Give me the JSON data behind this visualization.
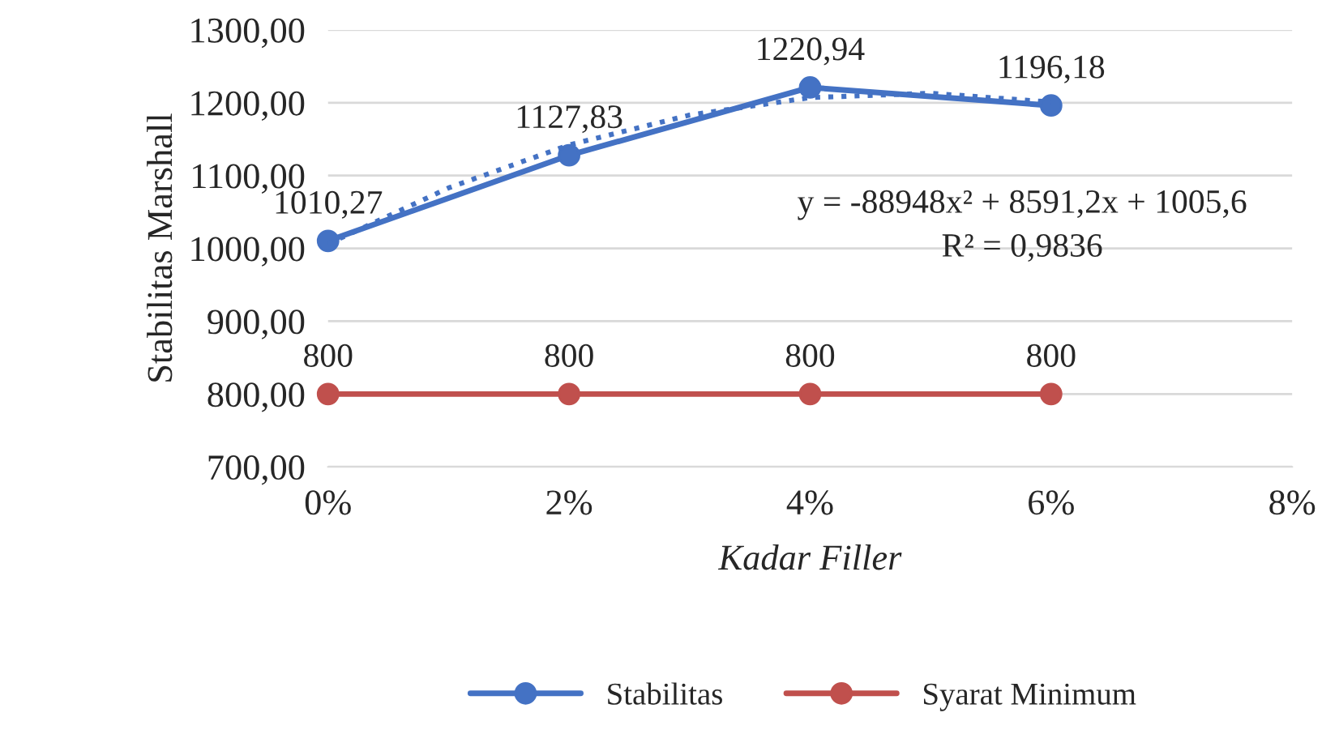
{
  "chart_data": {
    "type": "line",
    "xlabel": "Kadar Filler",
    "ylabel": "Stabilitas Marshall",
    "x": [
      0,
      0.02,
      0.04,
      0.06
    ],
    "series": [
      {
        "name": "Stabilitas",
        "color": "#4472c4",
        "values": [
          1010.27,
          1127.83,
          1220.94,
          1196.18
        ],
        "value_labels": [
          "1010,27",
          "1127,83",
          "1220,94",
          "1196,18"
        ],
        "marker": "circle"
      },
      {
        "name": "Syarat Minimum",
        "color": "#c0504d",
        "values": [
          800,
          800,
          800,
          800
        ],
        "value_labels": [
          "800",
          "800",
          "800",
          "800"
        ],
        "marker": "circle"
      },
      {
        "color": "#4472c4",
        "x": [
          0,
          0.01,
          0.02,
          0.03,
          0.04,
          0.05,
          0.06
        ],
        "values": [
          1006,
          1083,
          1142,
          1183,
          1207,
          1213,
          1201
        ],
        "marker": "none",
        "line_style": "dotted"
      }
    ],
    "xlim": [
      0,
      0.08
    ],
    "xticks": [
      {
        "value": 0,
        "label": "0%"
      },
      {
        "value": 0.02,
        "label": "2%"
      },
      {
        "value": 0.04,
        "label": "4%"
      },
      {
        "value": 0.06,
        "label": "6%"
      },
      {
        "value": 0.08,
        "label": "8%"
      }
    ],
    "ylim": [
      700,
      1300
    ],
    "yticks": [
      {
        "value": 700,
        "label": "700,00"
      },
      {
        "value": 800,
        "label": "800,00"
      },
      {
        "value": 900,
        "label": "900,00"
      },
      {
        "value": 1000,
        "label": "1000,00"
      },
      {
        "value": 1100,
        "label": "1100,00"
      },
      {
        "value": 1200,
        "label": "1200,00"
      },
      {
        "value": 1300,
        "label": "1300,00"
      }
    ],
    "annotations": [
      "y = -88948x² + 8591,2x + 1005,6",
      "R² = 0,9836"
    ],
    "grid": "y",
    "legend": "bottom"
  }
}
